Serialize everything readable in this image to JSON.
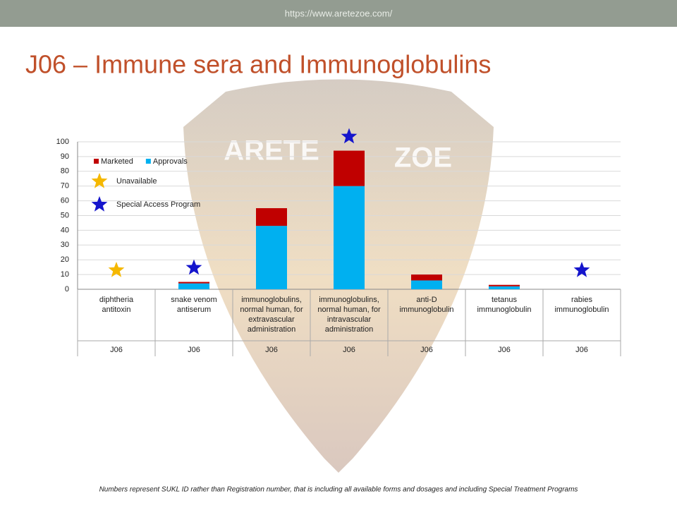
{
  "header": {
    "url": "https://www.aretezoe.com/"
  },
  "title": "J06 – Immune sera and Immunoglobulins",
  "watermark": [
    "ARETE",
    "ZOE"
  ],
  "footnote": "Numbers represent SUKL ID rather than Registration number, that is including all available forms and dosages and including Special Treatment Programs",
  "chart_data": {
    "type": "bar",
    "stacked": true,
    "categories": [
      [
        "diphtheria",
        "antitoxin"
      ],
      [
        "snake venom",
        "antiserum"
      ],
      [
        "immunoglobulins,",
        "normal human, for",
        "extravascular",
        "administration"
      ],
      [
        "immunoglobulins,",
        "normal human, for",
        "intravascular",
        "administration"
      ],
      [
        "anti-D",
        "immunoglobulin"
      ],
      [
        "tetanus",
        "immunoglobulin"
      ],
      [
        "rabies",
        "immunoglobulin"
      ]
    ],
    "groups": [
      "J06",
      "J06",
      "J06",
      "J06",
      "J06",
      "J06",
      "J06"
    ],
    "series": [
      {
        "name": "Approvals",
        "color": "#00b0f0",
        "values": [
          0,
          4,
          43,
          70,
          6,
          2,
          0
        ]
      },
      {
        "name": "Marketed",
        "color": "#c00000",
        "values": [
          0,
          1,
          12,
          24,
          4,
          1,
          0
        ]
      }
    ],
    "legend_order": [
      1,
      0
    ],
    "star_series": [
      {
        "name": "Unavailable",
        "color": "#f5b800",
        "categories": [
          0
        ]
      },
      {
        "name": "Special Access Program",
        "color": "#1515cc",
        "categories": [
          1,
          3,
          6
        ]
      }
    ],
    "ylim": [
      0,
      100
    ],
    "yticks": [
      0,
      10,
      20,
      30,
      40,
      50,
      60,
      70,
      80,
      90,
      100
    ],
    "grid": true
  }
}
